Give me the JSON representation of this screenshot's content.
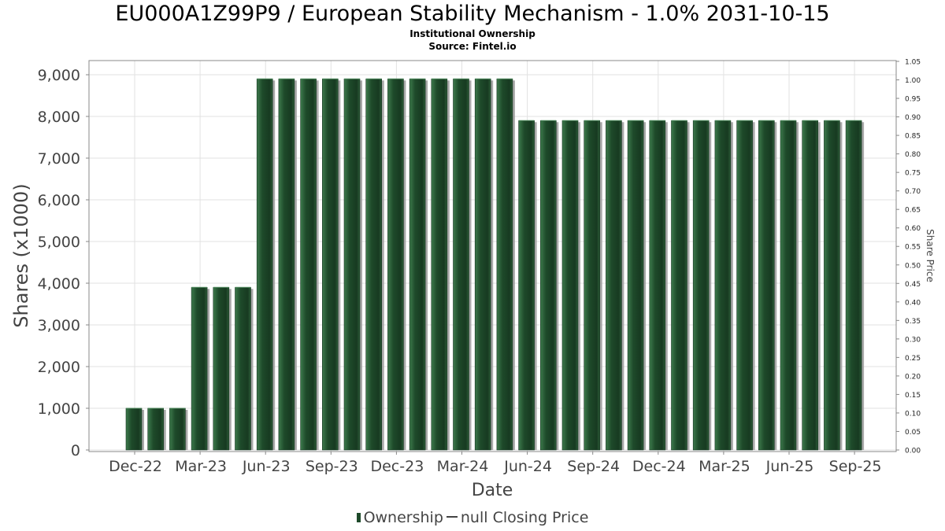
{
  "chart_data": {
    "type": "bar",
    "title": "EU000A1Z99P9 / European Stability Mechanism - 1.0% 2031-10-15",
    "subtitles": [
      "Institutional Ownership",
      "Source: Fintel.io"
    ],
    "xlabel": "Date",
    "ylabel": "Shares (x1000)",
    "y2label": "Share Price",
    "x_ticks": [
      "Dec-22",
      "Mar-23",
      "Jun-23",
      "Sep-23",
      "Dec-23",
      "Mar-24",
      "Jun-24",
      "Sep-24",
      "Dec-24",
      "Mar-25",
      "Jun-25",
      "Sep-25"
    ],
    "y_ticks": [
      "0",
      "1,000",
      "2,000",
      "3,000",
      "4,000",
      "5,000",
      "6,000",
      "7,000",
      "8,000",
      "9,000"
    ],
    "y2_ticks": [
      "0.00",
      "0.05",
      "0.10",
      "0.15",
      "0.20",
      "0.25",
      "0.30",
      "0.35",
      "0.40",
      "0.45",
      "0.50",
      "0.55",
      "0.60",
      "0.65",
      "0.70",
      "0.75",
      "0.80",
      "0.85",
      "0.90",
      "0.95",
      "1.00",
      "1.05"
    ],
    "ylim": [
      0,
      9000
    ],
    "y2lim": [
      0,
      1.05
    ],
    "grid": true,
    "legend_position": "bottom",
    "series": [
      {
        "name": "Ownership",
        "color": "#1e4a2a",
        "x": [
          "2022-12-01",
          "2023-01-01",
          "2023-02-01",
          "2023-03-01",
          "2023-04-01",
          "2023-05-01",
          "2023-06-01",
          "2023-07-01",
          "2023-08-01",
          "2023-09-01",
          "2023-10-01",
          "2023-11-01",
          "2023-12-01",
          "2024-01-01",
          "2024-02-01",
          "2024-03-01",
          "2024-04-01",
          "2024-05-01",
          "2024-06-01",
          "2024-07-01",
          "2024-08-01",
          "2024-09-01",
          "2024-10-01",
          "2024-11-01",
          "2024-12-01",
          "2025-01-01",
          "2025-02-01",
          "2025-03-01",
          "2025-04-01",
          "2025-05-01",
          "2025-06-01",
          "2025-07-01",
          "2025-08-01",
          "2025-09-01"
        ],
        "values": [
          1000,
          1000,
          1000,
          3900,
          3900,
          3900,
          8900,
          8900,
          8900,
          8900,
          8900,
          8900,
          8900,
          8900,
          8900,
          8900,
          8900,
          8900,
          7900,
          7900,
          7900,
          7900,
          7900,
          7900,
          7900,
          7900,
          7900,
          7900,
          7900,
          7900,
          7900,
          7900,
          7900,
          7900
        ]
      }
    ]
  },
  "legend": {
    "ownership_label": "Ownership",
    "price_label": "null Closing Price"
  }
}
